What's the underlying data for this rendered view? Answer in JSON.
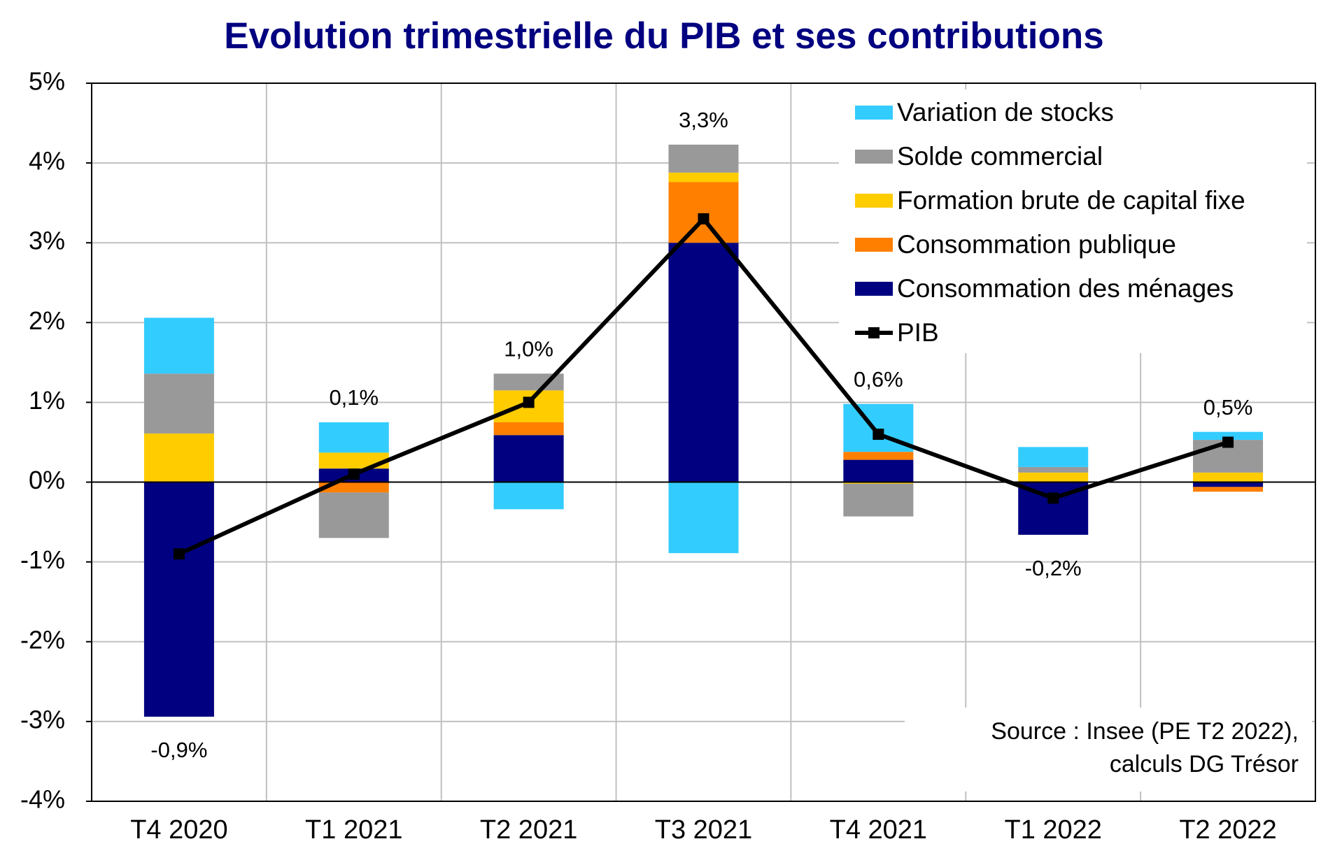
{
  "chart_data": {
    "type": "bar",
    "stacked": true,
    "title": "Evolution trimestrielle du PIB et ses contributions",
    "categories": [
      "T4 2020",
      "T1 2021",
      "T2 2021",
      "T3 2021",
      "T4 2021",
      "T1 2022",
      "T2 2022"
    ],
    "series": [
      {
        "name": "Consommation des ménages",
        "color": "#000080",
        "values": [
          -2.94,
          0.17,
          0.59,
          3.0,
          0.28,
          -0.66,
          -0.06
        ]
      },
      {
        "name": "Consommation publique",
        "color": "#ff7f00",
        "values": [
          0,
          -0.13,
          0.16,
          0.76,
          0.1,
          0,
          -0.06
        ]
      },
      {
        "name": "Formation brute de capital fixe",
        "color": "#ffcc00",
        "values": [
          0.61,
          0.2,
          0.4,
          0.12,
          -0.02,
          0.12,
          0.12
        ]
      },
      {
        "name": "Solde commercial",
        "color": "#999999",
        "values": [
          0.75,
          -0.57,
          0.21,
          0.35,
          -0.41,
          0.07,
          0.41
        ]
      },
      {
        "name": "Variation de stocks",
        "color": "#33ccff",
        "values": [
          0.7,
          0.38,
          -0.34,
          -0.89,
          0.6,
          0.25,
          0.1
        ]
      },
      {
        "name": "PIB",
        "type": "line",
        "color": "#000000",
        "values": [
          -0.9,
          0.1,
          1.0,
          3.3,
          0.6,
          -0.2,
          0.5
        ],
        "value_labels": [
          "-0,9%",
          "0,1%",
          "1,0%",
          "3,3%",
          "0,6%",
          "-0,2%",
          "0,5%"
        ]
      }
    ],
    "ylim": [
      -4,
      5
    ],
    "yticks": [
      {
        "value": -4,
        "label": "-4%"
      },
      {
        "value": -3,
        "label": "-3%"
      },
      {
        "value": -2,
        "label": "-2%"
      },
      {
        "value": -1,
        "label": "-1%"
      },
      {
        "value": 0,
        "label": "0%"
      },
      {
        "value": 1,
        "label": "1%"
      },
      {
        "value": 2,
        "label": "2%"
      },
      {
        "value": 3,
        "label": "3%"
      },
      {
        "value": 4,
        "label": "4%"
      },
      {
        "value": 5,
        "label": "5%"
      }
    ],
    "grid": true,
    "legend": "top-right",
    "source": [
      "Source : Insee (PE T2 2022),",
      "calculs DG Trésor"
    ]
  }
}
